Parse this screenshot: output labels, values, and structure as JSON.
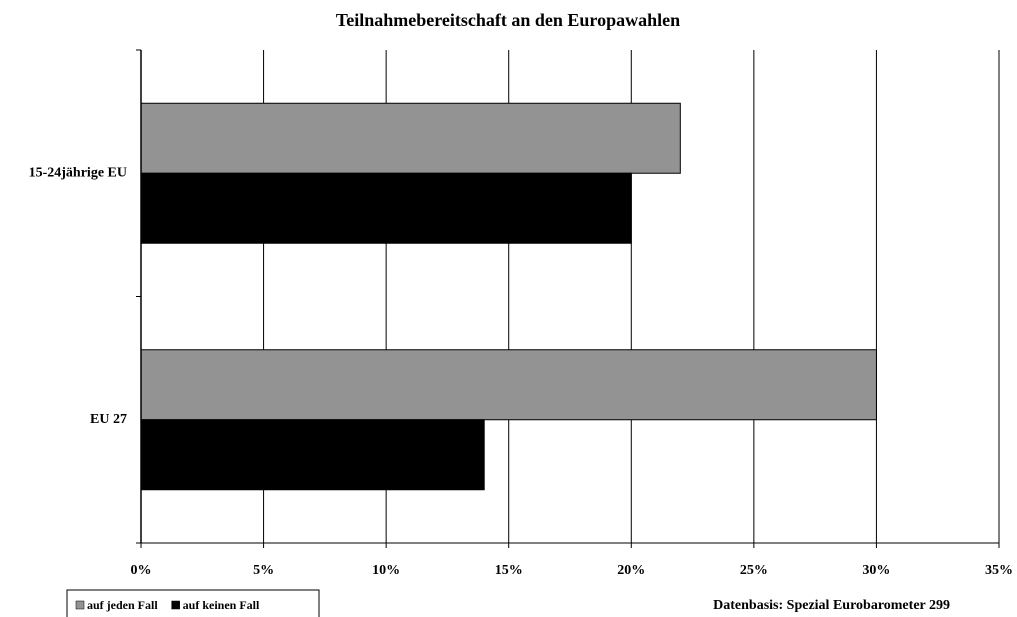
{
  "chart_data": {
    "type": "bar",
    "orientation": "horizontal",
    "title": "Teilnahmebereitschaft an den Europawahlen",
    "categories": [
      "15-24jährige EU",
      "EU 27"
    ],
    "series": [
      {
        "name": "auf jeden Fall",
        "color": "#939393",
        "values": [
          22,
          30
        ]
      },
      {
        "name": "auf keinen Fall",
        "color": "#000000",
        "values": [
          20,
          14
        ]
      }
    ],
    "xlim": [
      0,
      35
    ],
    "xticks": [
      {
        "value": 0,
        "label": "0%"
      },
      {
        "value": 5,
        "label": "5%"
      },
      {
        "value": 10,
        "label": "10%"
      },
      {
        "value": 15,
        "label": "15%"
      },
      {
        "value": 20,
        "label": "20%"
      },
      {
        "value": 25,
        "label": "25%"
      },
      {
        "value": 30,
        "label": "30%"
      },
      {
        "value": 35,
        "label": "35%"
      }
    ],
    "grid": true,
    "legend": "bottom-left",
    "source": "Datenbasis: Spezial Eurobarometer 299"
  }
}
